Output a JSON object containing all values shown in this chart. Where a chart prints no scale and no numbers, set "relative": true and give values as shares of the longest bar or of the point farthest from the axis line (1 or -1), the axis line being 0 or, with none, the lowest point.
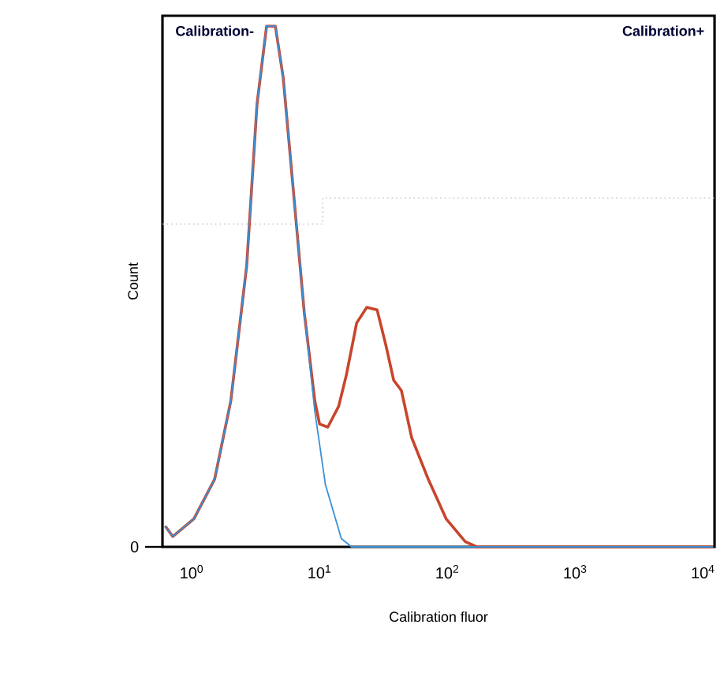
{
  "chart_data": {
    "type": "line",
    "relative": true,
    "log": "x",
    "marker": "none",
    "line_style": "solid",
    "xlabel": "Calibration fluor",
    "ylabel": "Count",
    "xlim": [
      0.59,
      12300
    ],
    "xticks": [
      {
        "value": 1,
        "label": "10$^{0}$"
      },
      {
        "value": 10,
        "label": "10$^{1}$"
      },
      {
        "value": 100,
        "label": "10$^{2}$"
      },
      {
        "value": 1000,
        "label": "10$^{3}$"
      },
      {
        "value": 10000,
        "label": "10$^{4}$"
      }
    ],
    "annotations": [
      "0",
      "Calibration-",
      "Calibration+"
    ],
    "series": [
      {
        "color": "#c8c8c8",
        "line_style": "dotted",
        "x": [
          0.59,
          10.6,
          10.6,
          12300
        ],
        "values": [
          0.62,
          0.62,
          0.67,
          0.67
        ]
      },
      {
        "color": "#c8452c",
        "x": [
          0.62,
          0.71,
          1.04,
          1.51,
          2.02,
          2.69,
          3.24,
          3.85,
          4.51,
          5.2,
          6.31,
          7.59,
          9.18,
          10,
          11.6,
          14.1,
          16.2,
          19.5,
          23.4,
          28.2,
          33.1,
          38,
          43.7,
          52.5,
          70.8,
          97.7,
          138,
          170,
          12000
        ],
        "values": [
          0.04,
          0.02,
          0.054,
          0.13,
          0.28,
          0.54,
          0.85,
          1.0,
          1.0,
          0.9,
          0.67,
          0.45,
          0.28,
          0.236,
          0.23,
          0.27,
          0.33,
          0.43,
          0.46,
          0.455,
          0.386,
          0.32,
          0.3,
          0.21,
          0.13,
          0.054,
          0.01,
          0,
          0
        ]
      },
      {
        "color": "#3a8fd6",
        "x": [
          0.62,
          0.71,
          1.04,
          1.51,
          2.02,
          2.69,
          3.24,
          3.85,
          4.51,
          5.2,
          6.31,
          7.59,
          9.18,
          11.1,
          14.8,
          17.8,
          12000
        ],
        "values": [
          0.04,
          0.02,
          0.054,
          0.13,
          0.28,
          0.54,
          0.85,
          1.0,
          1.0,
          0.9,
          0.67,
          0.45,
          0.26,
          0.12,
          0.016,
          0,
          0
        ]
      }
    ]
  }
}
